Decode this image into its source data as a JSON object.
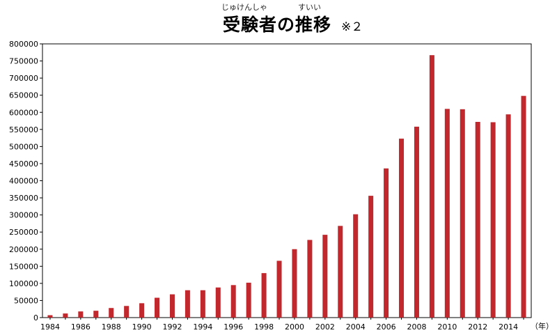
{
  "title_ruby_1": "じゅけんしゃ",
  "title_ruby_2": "すいい",
  "note": "※２",
  "chart_data": {
    "type": "bar",
    "title": "受験者の推移",
    "xunit": "（年）",
    "bar_color": "#c0282d",
    "grid": false,
    "ylim": [
      0,
      800000
    ],
    "yticks": [
      0,
      50000,
      100000,
      150000,
      200000,
      250000,
      300000,
      350000,
      400000,
      450000,
      500000,
      550000,
      600000,
      650000,
      700000,
      750000,
      800000
    ],
    "categories": [
      1984,
      1985,
      1986,
      1987,
      1988,
      1989,
      1990,
      1991,
      1992,
      1993,
      1994,
      1995,
      1996,
      1997,
      1998,
      1999,
      2000,
      2001,
      2002,
      2003,
      2004,
      2005,
      2006,
      2007,
      2008,
      2009,
      2010,
      2011,
      2012,
      2013,
      2014,
      2015
    ],
    "xtick_labels": [
      "1984",
      "1986",
      "1988",
      "1990",
      "1992",
      "1994",
      "1996",
      "1998",
      "2000",
      "2002",
      "2004",
      "2006",
      "2008",
      "2010",
      "2012",
      "2014"
    ],
    "values": [
      7000,
      12000,
      18000,
      20000,
      28000,
      34000,
      42000,
      58000,
      68000,
      80000,
      80000,
      88000,
      95000,
      102000,
      130000,
      166000,
      200000,
      227000,
      242000,
      268000,
      302000,
      356000,
      436000,
      523000,
      558000,
      767000,
      610000,
      609000,
      572000,
      571000,
      594000,
      648000
    ]
  }
}
